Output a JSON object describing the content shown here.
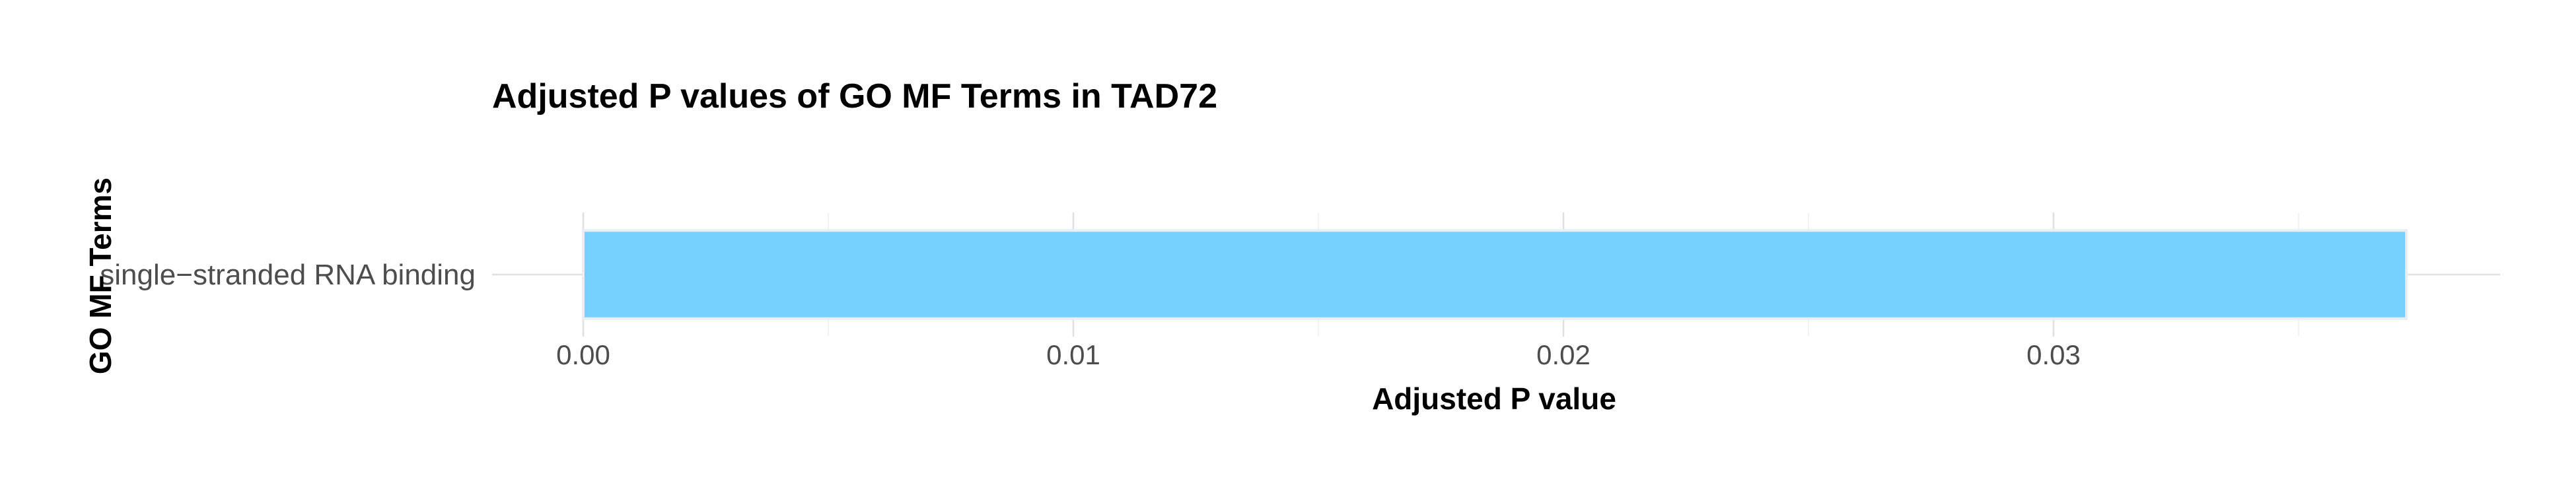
{
  "chart_data": {
    "type": "bar",
    "orientation": "horizontal",
    "title": "Adjusted P values of GO MF Terms in TAD72",
    "xlabel": "Adjusted P value",
    "ylabel": "GO MF Terms",
    "categories": [
      "single−stranded RNA binding"
    ],
    "values": [
      0.0372
    ],
    "xlim": [
      0,
      0.039
    ],
    "xticks": [
      0.0,
      0.01,
      0.02,
      0.03
    ],
    "xtick_labels": [
      "0.00",
      "0.01",
      "0.02",
      "0.03"
    ],
    "grid": true,
    "legend": "none",
    "bar_color": "#75d0fc",
    "bar_outline_color": "#e8eef2"
  }
}
